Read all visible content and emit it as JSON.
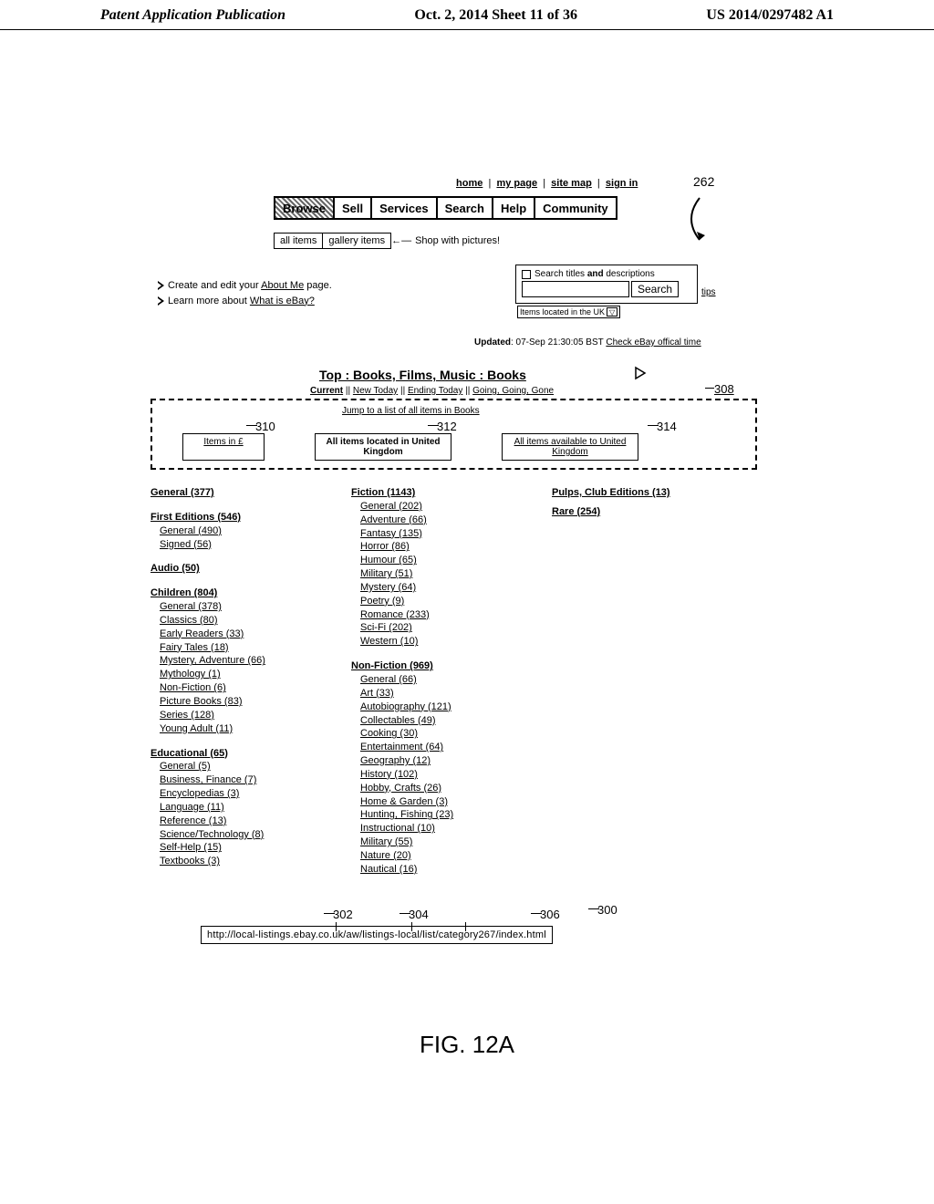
{
  "header": {
    "left": "Patent Application Publication",
    "mid": "Oct. 2, 2014  Sheet 11 of 36",
    "right": "US 2014/0297482 A1"
  },
  "topnav": {
    "items": [
      "home",
      "my page",
      "site map",
      "sign in"
    ]
  },
  "mainnav": {
    "items": [
      "Browse",
      "Sell",
      "Services",
      "Search",
      "Help",
      "Community"
    ]
  },
  "subnav": {
    "all": "all items",
    "gallery": "gallery items",
    "note": "Shop with pictures!"
  },
  "annot": {
    "n262": "262",
    "n308": "308",
    "n310": "310",
    "n312": "312",
    "n314": "314",
    "n300": "300",
    "n302": "302",
    "n304": "304",
    "n306": "306"
  },
  "bullets": {
    "l1a": "Create and  edit your ",
    "l1b": "About Me",
    "l1c": " page.",
    "l2a": "Learn more about ",
    "l2b": "What is eBay?"
  },
  "search": {
    "chk_label": "Search titles and descriptions",
    "btn": "Search",
    "tips": "tips",
    "loc": "Items located in the UK"
  },
  "updated": {
    "prefix": "Updated",
    "ts": ": 07-Sep 21:30:05 BST ",
    "link": "Check eBay offical time"
  },
  "breadcrumb": "Top : Books, Films, Music : Books",
  "filterbar": {
    "current": "Current",
    "sep": " || ",
    "new": "New Today",
    "end": "Ending Today",
    "going": "Going, Going, Gone"
  },
  "jump": "Jump to a list of all items in Books",
  "tabs": {
    "t1": "Items in £",
    "t2": "All items located in United Kingdom",
    "t3": "All items available to United Kingdom"
  },
  "col1": [
    {
      "grp": "General (377)"
    },
    {
      "gap": 1
    },
    {
      "grp": "First Editions (546)"
    },
    {
      "sub": "General (490)"
    },
    {
      "sub": "Signed (56)"
    },
    {
      "gap": 1
    },
    {
      "grp": "Audio (50)"
    },
    {
      "gap": 1
    },
    {
      "grp": "Children (804)"
    },
    {
      "sub": "General (378)"
    },
    {
      "sub": "Classics (80)"
    },
    {
      "sub": "Early Readers (33)"
    },
    {
      "sub": "Fairy Tales (18)"
    },
    {
      "sub": "Mystery, Adventure (66)"
    },
    {
      "sub": "Mythology (1)"
    },
    {
      "sub": "Non-Fiction (6)"
    },
    {
      "sub": "Picture Books (83)"
    },
    {
      "sub": "Series (128)"
    },
    {
      "sub": "Young Adult (11)"
    },
    {
      "gap": 1
    },
    {
      "grp": "Educational (65)"
    },
    {
      "sub": "General (5)"
    },
    {
      "sub": "Business, Finance (7)"
    },
    {
      "sub": "Encyclopedias (3)"
    },
    {
      "sub": "Language (11)"
    },
    {
      "sub": "Reference (13)"
    },
    {
      "sub": "Science/Technology (8)"
    },
    {
      "sub": "Self-Help (15)"
    },
    {
      "sub": "Textbooks (3)"
    }
  ],
  "col2": [
    {
      "grp": "Fiction (1143)"
    },
    {
      "sub": "General (202)"
    },
    {
      "sub": "Adventure (66)"
    },
    {
      "sub": "Fantasy (135)"
    },
    {
      "sub": "Horror (86)"
    },
    {
      "sub": "Humour (65)"
    },
    {
      "sub": "Military (51)"
    },
    {
      "sub": "Mystery (64)"
    },
    {
      "sub": "Poetry (9)"
    },
    {
      "sub": "Romance (233)"
    },
    {
      "sub": "Sci-Fi (202)"
    },
    {
      "sub": "Western (10)"
    },
    {
      "gap": 1
    },
    {
      "grp": "Non-Fiction (969)"
    },
    {
      "sub": "General (66)"
    },
    {
      "sub": "Art (33)"
    },
    {
      "sub": "Autobiography (121)"
    },
    {
      "sub": "Collectables (49)"
    },
    {
      "sub": "Cooking (30)"
    },
    {
      "sub": "Entertainment (64)"
    },
    {
      "sub": "Geography (12)"
    },
    {
      "sub": "History (102)"
    },
    {
      "sub": "Hobby, Crafts (26)"
    },
    {
      "sub": "Home & Garden (3)"
    },
    {
      "sub": "Hunting, Fishing (23)"
    },
    {
      "sub": "Instructional (10)"
    },
    {
      "sub": "Military (55)"
    },
    {
      "sub": "Nature (20)"
    },
    {
      "sub": "Nautical (16)"
    }
  ],
  "col3": [
    {
      "grp": "Pulps, Club Editions (13)"
    },
    {
      "grp": "Rare (254)"
    }
  ],
  "url": "http://local-listings.ebay.co.uk/aw/listings-local/list/category267/index.html",
  "figcap": "FIG. 12A"
}
